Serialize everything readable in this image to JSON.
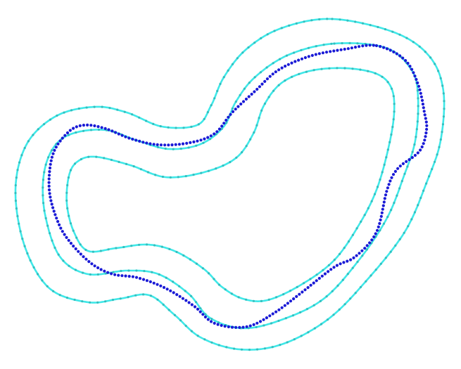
{
  "figure": {
    "background_color": "#ffffff",
    "band_color": "#40e8e8",
    "band_point_color": "#33bfbf",
    "track_color": "#1a1ad6"
  },
  "curves": [
    {
      "name": "outer-boundary-curve",
      "kind": "band"
    },
    {
      "name": "middle-centerline-curve",
      "kind": "band"
    },
    {
      "name": "inner-boundary-curve",
      "kind": "band"
    },
    {
      "name": "dotted-trajectory-curve",
      "kind": "track"
    }
  ]
}
